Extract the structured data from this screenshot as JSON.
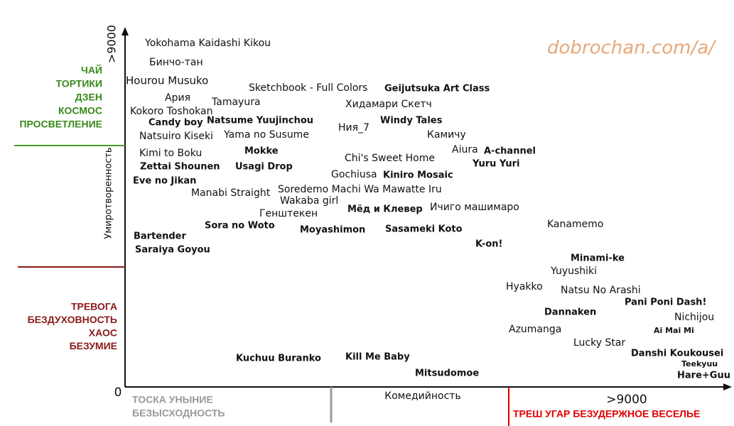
{
  "watermark": "dobrochan.com/a/",
  "y_axis": {
    "max": ">9000",
    "label": "Умиротворенность"
  },
  "x_axis": {
    "origin": "0",
    "label": "Комедийность",
    "max": ">9000"
  },
  "zones": {
    "calm": [
      "ЧАЙ",
      "ТОРТИКИ",
      "ДЗЕН",
      "КОСМОС",
      "ПРОСВЕТЛЕНИЕ"
    ],
    "anxiety": [
      "ТРЕВОГА",
      "БЕЗДУХОВНОСТЬ",
      "ХАОС",
      "БЕЗУМИЕ"
    ],
    "gloom": [
      "ТОСКА УНЫНИЕ",
      "БЕЗЫСХОДНОСТЬ"
    ],
    "fun": [
      "ТРЕШ УГАР БЕЗУДЕРЖНОЕ ВЕСЕЛЬЕ"
    ]
  },
  "titles": [
    "Yokohama Kaidashi Kikou",
    "Бинчо-тан",
    "Hourou Musuko",
    "Ария",
    "Tamayura",
    "Kokoro Toshokan",
    "Candy boy",
    "Natsume Yuujinchou",
    "Natsuiro Kiseki",
    "Yama no Susume",
    "Kimi to Boku",
    "Mokke",
    "Zettai Shounen",
    "Usagi Drop",
    "Eve no Jikan",
    "Manabi Straight",
    "Sketchbook - Full Colors",
    "Geijutsuka Art Class",
    "Хидамари Скетч",
    "Windy Tales",
    "Ния_7",
    "Камичу",
    "Aiura",
    "A-channel",
    "Chi's Sweet Home",
    "Yuru Yuri",
    "Gochiusa",
    "Kiniro Mosaic",
    "Soredemo Machi Wa Mawatte Iru",
    "Wakaba girl",
    "Мёд и Клевер",
    "Ичиго машимаро",
    "Генштекен",
    "Sora no Woto",
    "Moyashimon",
    "Sasameki Koto",
    "Bartender",
    "Saraiya Goyou",
    "Kanamemo",
    "K-on!",
    "Minami-ke",
    "Yuyushiki",
    "Hyakko",
    "Natsu No Arashi",
    "Pani Poni Dash!",
    "Dannaken",
    "Nichijou",
    "Azumanga",
    "Ai Mai Mi",
    "Lucky Star",
    "Danshi Koukousei",
    "Teekyuu",
    "Hare+Guu",
    "Kuchuu Buranko",
    "Kill Me Baby",
    "Mitsudomoe"
  ]
}
